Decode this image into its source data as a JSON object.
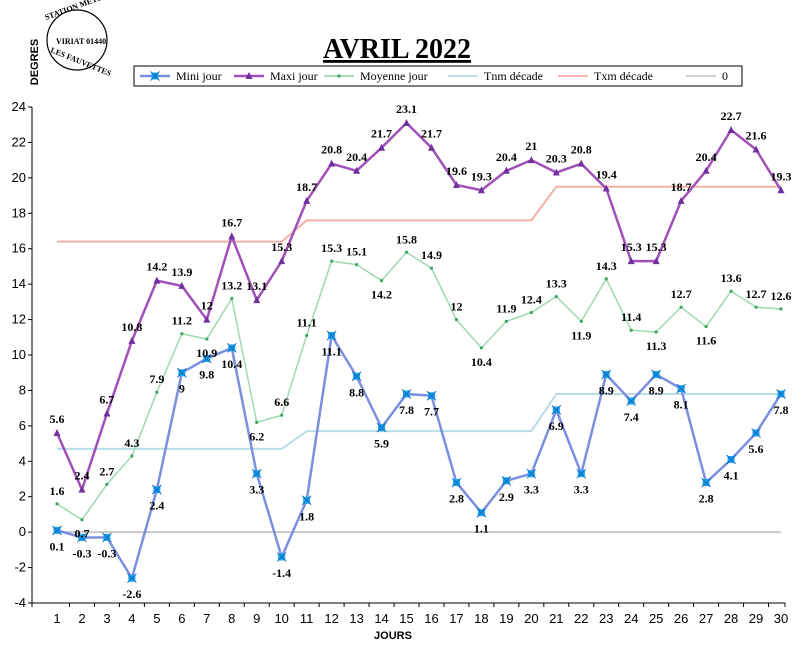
{
  "stamp": {
    "line1": "STATION METEO",
    "line2": "VIRIAT 01440",
    "line3": "LES FAUVETTES"
  },
  "chart_data": {
    "type": "line",
    "title": "AVRIL 2022",
    "xlabel": "JOURS",
    "ylabel": "DEGRES",
    "ylim": [
      -4,
      24
    ],
    "yticks": [
      -4,
      -2,
      0,
      2,
      4,
      6,
      8,
      10,
      12,
      14,
      16,
      18,
      20,
      22,
      24
    ],
    "grid": false,
    "legend_position": "top",
    "x": [
      1,
      2,
      3,
      4,
      5,
      6,
      7,
      8,
      9,
      10,
      11,
      12,
      13,
      14,
      15,
      16,
      17,
      18,
      19,
      20,
      21,
      22,
      23,
      24,
      25,
      26,
      27,
      28,
      29,
      30
    ],
    "series": [
      {
        "name": "Mini jour",
        "color": "#7b8fe0",
        "marker": "star",
        "marker_color": "#1aa0ee",
        "labels": true,
        "values": [
          0.1,
          -0.3,
          -0.3,
          -2.6,
          2.4,
          9,
          9.8,
          10.4,
          3.3,
          -1.4,
          1.8,
          11.1,
          8.8,
          5.9,
          7.8,
          7.7,
          2.8,
          1.1,
          2.9,
          3.3,
          6.9,
          3.3,
          8.9,
          7.4,
          8.9,
          8.1,
          2.8,
          4.1,
          5.6,
          7.8
        ]
      },
      {
        "name": "Maxi jour",
        "color": "#a050b8",
        "marker": "triangle",
        "marker_color": "#7030a0",
        "labels": true,
        "values": [
          5.6,
          2.4,
          6.7,
          10.8,
          14.2,
          13.9,
          12,
          16.7,
          13.1,
          15.3,
          18.7,
          20.8,
          20.4,
          21.7,
          23.1,
          21.7,
          19.6,
          19.3,
          20.4,
          21,
          20.3,
          20.8,
          19.4,
          15.3,
          15.3,
          18.7,
          20.4,
          22.7,
          21.6,
          19.3
        ]
      },
      {
        "name": "Moyenne jour",
        "color": "#9fd8b0",
        "marker": "dot",
        "marker_color": "#3aa860",
        "labels": true,
        "values": [
          1.6,
          0.7,
          2.7,
          4.3,
          7.9,
          11.2,
          10.9,
          13.2,
          6.2,
          6.6,
          11.1,
          15.3,
          15.1,
          14.2,
          15.8,
          14.9,
          12,
          10.4,
          11.9,
          12.4,
          13.3,
          11.9,
          14.3,
          11.4,
          11.3,
          12.7,
          11.6,
          13.6,
          12.7,
          12.6
        ]
      },
      {
        "name": "Tnm décade",
        "color": "#b8dce8",
        "marker": "none",
        "labels": false,
        "values": [
          4.7,
          4.7,
          4.7,
          4.7,
          4.7,
          4.7,
          4.7,
          4.7,
          4.7,
          4.7,
          5.7,
          5.7,
          5.7,
          5.7,
          5.7,
          5.7,
          5.7,
          5.7,
          5.7,
          5.7,
          7.8,
          7.8,
          7.8,
          7.8,
          7.8,
          7.8,
          7.8,
          7.8,
          7.8,
          7.8
        ]
      },
      {
        "name": "Txm décade",
        "color": "#f4b0a8",
        "marker": "none",
        "labels": false,
        "values": [
          16.4,
          16.4,
          16.4,
          16.4,
          16.4,
          16.4,
          16.4,
          16.4,
          16.4,
          16.4,
          17.6,
          17.6,
          17.6,
          17.6,
          17.6,
          17.6,
          17.6,
          17.6,
          17.6,
          17.6,
          19.5,
          19.5,
          19.5,
          19.5,
          19.5,
          19.5,
          19.5,
          19.5,
          19.5,
          19.5
        ]
      },
      {
        "name": "0",
        "color": "#c8c8c8",
        "marker": "none",
        "labels": false,
        "values": [
          0,
          0,
          0,
          0,
          0,
          0,
          0,
          0,
          0,
          0,
          0,
          0,
          0,
          0,
          0,
          0,
          0,
          0,
          0,
          0,
          0,
          0,
          0,
          0,
          0,
          0,
          0,
          0,
          0,
          0
        ]
      }
    ]
  }
}
